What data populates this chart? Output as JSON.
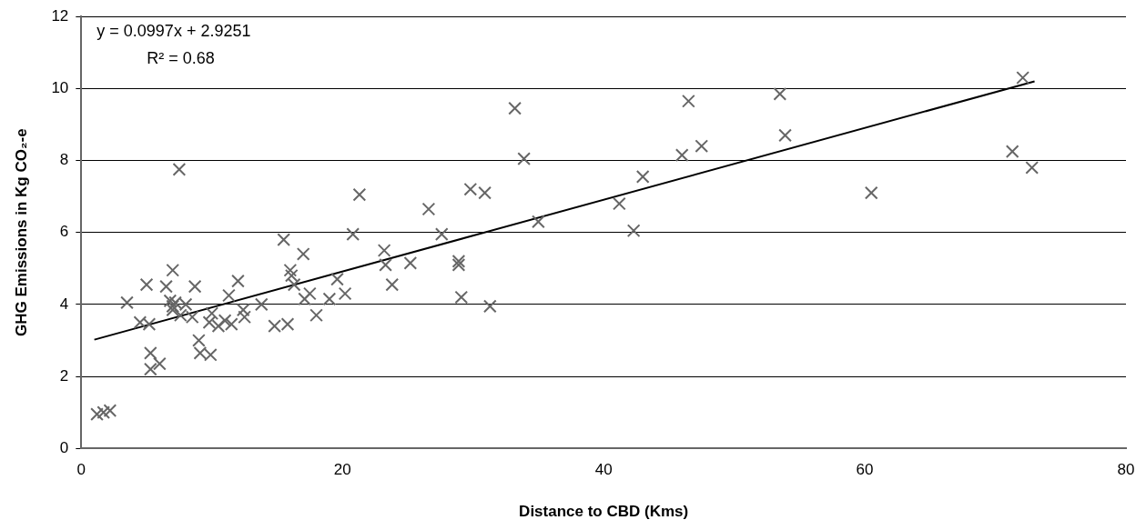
{
  "chart_data": {
    "type": "scatter",
    "xlabel": "Distance to CBD (Kms)",
    "ylabel": "GHG Emissions in Kg CO₂-e",
    "annotations": [
      "y = 0.0997x + 2.9251",
      "R² = 0.68"
    ],
    "xlim": [
      0,
      80
    ],
    "xticks": [
      0,
      20,
      40,
      60,
      80
    ],
    "ylim": [
      0,
      12
    ],
    "yticks": [
      0,
      2,
      4,
      6,
      8,
      10,
      12
    ],
    "grid": "y",
    "legend": false,
    "series": [
      {
        "type": "scatter",
        "marker": "cross",
        "color": "#666666",
        "x": [
          1.2,
          1.7,
          2.2,
          3.5,
          4.5,
          5,
          5.2,
          5.3,
          5.3,
          6,
          6.5,
          6.8,
          7,
          7,
          7,
          7.2,
          7.5,
          7.6,
          8,
          8.5,
          8.7,
          9,
          9.1,
          9.8,
          9.9,
          10,
          10.5,
          11,
          11.3,
          11.5,
          12,
          12.4,
          12.5,
          13.8,
          14.8,
          15.5,
          15.8,
          16,
          16.1,
          16.3,
          17,
          17.1,
          17.5,
          18,
          19,
          19.6,
          20.2,
          20.8,
          21.3,
          23.2,
          23.3,
          23.8,
          25.2,
          26.6,
          27.6,
          29.8,
          30.9,
          28.9,
          28.9,
          29.1,
          31.3,
          33.2,
          33.9,
          35,
          41.2,
          42.3,
          43,
          46,
          46.5,
          47.5,
          53.5,
          53.9,
          60.5,
          71.3,
          72.1,
          72.8
        ],
        "values": [
          0.95,
          1,
          1.05,
          4.05,
          3.5,
          4.55,
          3.45,
          2.65,
          2.2,
          2.35,
          4.5,
          4.1,
          4.95,
          3.95,
          3.85,
          4.05,
          7.75,
          3.7,
          4,
          3.65,
          4.5,
          3,
          2.65,
          3.5,
          2.6,
          3.75,
          3.4,
          3.55,
          4.25,
          3.45,
          4.65,
          3.85,
          3.65,
          4,
          3.4,
          5.8,
          3.45,
          4.95,
          4.8,
          4.55,
          5.4,
          4.15,
          4.3,
          3.7,
          4.15,
          4.7,
          4.3,
          5.95,
          7.05,
          5.5,
          5.1,
          4.55,
          5.15,
          6.65,
          5.95,
          7.2,
          7.1,
          5.2,
          5.1,
          4.2,
          3.95,
          9.45,
          8.05,
          6.3,
          6.8,
          6.05,
          7.55,
          8.15,
          9.65,
          8.4,
          9.85,
          8.7,
          7.1,
          8.25,
          10.3,
          7.8
        ]
      },
      {
        "type": "line",
        "marker": "none",
        "line_style": "solid",
        "color": "#000000",
        "x": [
          1,
          73
        ],
        "values": [
          3.02,
          10.2
        ]
      }
    ]
  }
}
